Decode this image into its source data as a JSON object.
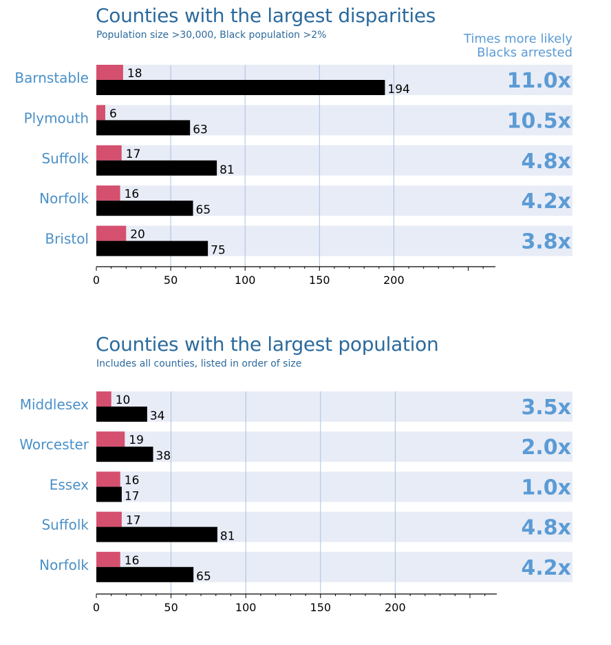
{
  "chart_data": [
    {
      "type": "bar",
      "orientation": "horizontal",
      "title": "Counties with the largest disparities",
      "subtitle": "Population size >30,000, Black population >2%",
      "ratio_header": [
        "Times more likely",
        "Blacks arrested"
      ],
      "categories": [
        "Barnstable",
        "Plymouth",
        "Suffolk",
        "Norfolk",
        "Bristol"
      ],
      "series": [
        {
          "color": "#d4506e",
          "values": [
            18,
            6,
            17,
            16,
            20
          ]
        },
        {
          "color": "#000000",
          "values": [
            194,
            63,
            81,
            65,
            75
          ]
        }
      ],
      "ratios": [
        "11.0x",
        "10.5x",
        "4.8x",
        "4.2x",
        "3.8x"
      ],
      "xticks": [
        0,
        50,
        100,
        150,
        200
      ],
      "xlim": [
        0,
        200
      ],
      "grid": true
    },
    {
      "type": "bar",
      "orientation": "horizontal",
      "title": "Counties with the largest population",
      "subtitle": "Includes all counties, listed in order of size",
      "categories": [
        "Middlesex",
        "Worcester",
        "Essex",
        "Suffolk",
        "Norfolk"
      ],
      "series": [
        {
          "color": "#d4506e",
          "values": [
            10,
            19,
            16,
            17,
            16
          ]
        },
        {
          "color": "#000000",
          "values": [
            34,
            38,
            17,
            81,
            65
          ]
        }
      ],
      "ratios": [
        "3.5x",
        "2.0x",
        "1.0x",
        "4.8x",
        "4.2x"
      ],
      "xticks": [
        0,
        50,
        100,
        150,
        200
      ],
      "xlim": [
        0,
        200
      ],
      "grid": true
    }
  ],
  "colors": {
    "title": "#2b6a9d",
    "label": "#4a90c8",
    "ratio": "#5b9bd5",
    "band": "#e8ecf6",
    "grid": "#a8c0e0",
    "axis": "#000000"
  }
}
